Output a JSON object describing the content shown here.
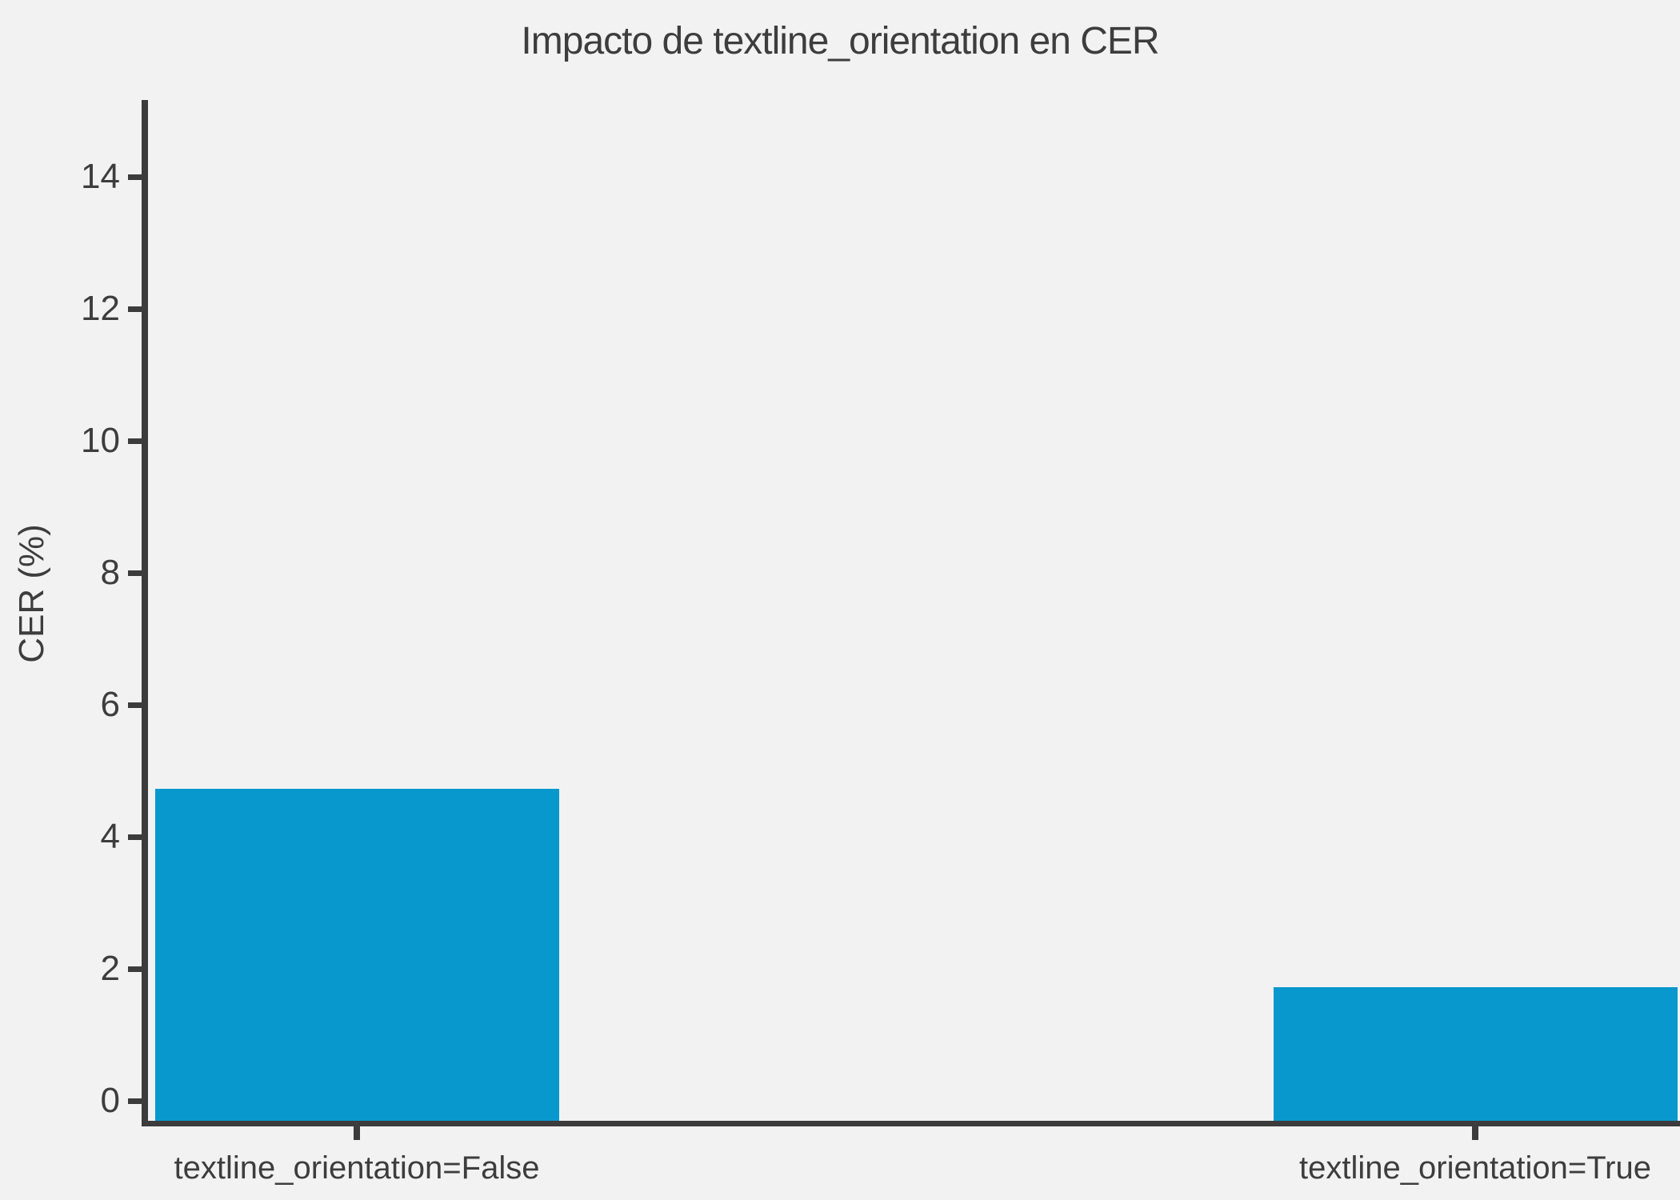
{
  "chart_data": {
    "type": "bar",
    "title": "Impacto de textline_orientation en CER",
    "ylabel": "CER (%)",
    "xlabel": "",
    "categories": [
      "textline_orientation=False",
      "textline_orientation=True"
    ],
    "values": [
      4.73,
      1.73
    ],
    "yticks": [
      0,
      2,
      4,
      6,
      8,
      10,
      12,
      14
    ],
    "ylim": [
      -0.3,
      15.2
    ],
    "grid": false,
    "legend_position": "none",
    "bar_color": "#0998ce",
    "background_color": "#f2f2f2",
    "spine_color": "#3c3c3c",
    "text_color": "#3d3d3d"
  }
}
